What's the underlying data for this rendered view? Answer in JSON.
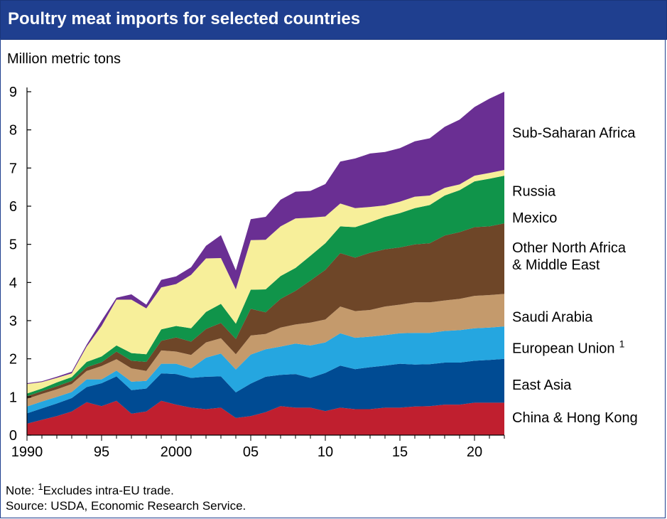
{
  "title": "Poultry meat imports for selected countries",
  "unit_label": "Million metric tons",
  "note_prefix": "Note: ",
  "note_sup": "1",
  "note_text": "Excludes intra-EU trade.",
  "source": "Source: USDA, Economic Research Service.",
  "colors": {
    "title_bg": "#1f3f8f",
    "China & Hong Kong": "#c01f2f",
    "East Asia": "#004b93",
    "European Union": "#25a6e0",
    "Saudi Arabia": "#c49a6c",
    "Other North Africa & Middle East": "#6e4628",
    "Mexico": "#10944a",
    "Russia": "#f7ef9a",
    "Sub-Saharan Africa": "#6a2f93"
  },
  "chart_data": {
    "type": "area",
    "stacked": true,
    "x": [
      1990,
      1991,
      1992,
      1993,
      1994,
      1995,
      1996,
      1997,
      1998,
      1999,
      2000,
      2001,
      2002,
      2003,
      2004,
      2005,
      2006,
      2007,
      2008,
      2009,
      2010,
      2011,
      2012,
      2013,
      2014,
      2015,
      2016,
      2017,
      2018,
      2019,
      2020,
      2021,
      2022
    ],
    "x_tick_values": [
      1990,
      1995,
      2000,
      2005,
      2010,
      2015,
      2020
    ],
    "x_tick_labels": [
      "1990",
      "95",
      "2000",
      "05",
      "10",
      "15",
      "20"
    ],
    "y_ticks": [
      "0",
      "1",
      "2",
      "3",
      "4",
      "5",
      "6",
      "7",
      "8",
      "9"
    ],
    "ylim": [
      0,
      9
    ],
    "grid": false,
    "series": [
      {
        "name": "China & Hong Kong",
        "legend_lines": [
          "China & Hong Kong"
        ],
        "legend_y": 0.47,
        "values": [
          0.3,
          0.4,
          0.5,
          0.62,
          0.86,
          0.76,
          0.9,
          0.56,
          0.62,
          0.9,
          0.8,
          0.72,
          0.68,
          0.72,
          0.45,
          0.5,
          0.6,
          0.76,
          0.72,
          0.72,
          0.63,
          0.72,
          0.68,
          0.68,
          0.72,
          0.72,
          0.75,
          0.76,
          0.8,
          0.8,
          0.85,
          0.85,
          0.85
        ]
      },
      {
        "name": "East Asia",
        "legend_lines": [
          "East Asia"
        ],
        "legend_y": 1.32,
        "values": [
          0.27,
          0.3,
          0.33,
          0.35,
          0.4,
          0.6,
          0.64,
          0.62,
          0.6,
          0.72,
          0.8,
          0.78,
          0.85,
          0.82,
          0.67,
          0.85,
          0.93,
          0.82,
          0.88,
          0.78,
          1.0,
          1.1,
          1.05,
          1.1,
          1.1,
          1.15,
          1.1,
          1.1,
          1.1,
          1.1,
          1.1,
          1.12,
          1.15
        ]
      },
      {
        "name": "European Union",
        "legend_lines": [
          "European Union"
        ],
        "legend_sup": "1",
        "legend_y": 2.28,
        "values": [
          0.18,
          0.18,
          0.17,
          0.16,
          0.2,
          0.1,
          0.15,
          0.22,
          0.2,
          0.25,
          0.27,
          0.25,
          0.5,
          0.6,
          0.6,
          0.76,
          0.72,
          0.74,
          0.8,
          0.85,
          0.8,
          0.85,
          0.82,
          0.8,
          0.8,
          0.8,
          0.83,
          0.82,
          0.83,
          0.85,
          0.85,
          0.85,
          0.85
        ]
      },
      {
        "name": "Saudi Arabia",
        "legend_lines": [
          "Saudi Arabia"
        ],
        "legend_y": 3.1,
        "values": [
          0.2,
          0.2,
          0.2,
          0.21,
          0.22,
          0.35,
          0.3,
          0.35,
          0.26,
          0.35,
          0.32,
          0.35,
          0.4,
          0.4,
          0.4,
          0.5,
          0.4,
          0.5,
          0.5,
          0.6,
          0.6,
          0.7,
          0.7,
          0.7,
          0.75,
          0.75,
          0.8,
          0.8,
          0.8,
          0.82,
          0.85,
          0.85,
          0.85
        ]
      },
      {
        "name": "Other North Africa & Middle East",
        "legend_lines": [
          "Other North Africa",
          "& Middle East"
        ],
        "legend_y": 4.7,
        "values": [
          0.07,
          0.07,
          0.08,
          0.08,
          0.1,
          0.1,
          0.2,
          0.2,
          0.24,
          0.25,
          0.37,
          0.35,
          0.35,
          0.4,
          0.4,
          0.7,
          0.57,
          0.75,
          0.88,
          1.1,
          1.3,
          1.4,
          1.4,
          1.5,
          1.5,
          1.5,
          1.52,
          1.55,
          1.7,
          1.75,
          1.8,
          1.8,
          1.85
        ]
      },
      {
        "name": "Mexico",
        "legend_lines": [
          "Mexico"
        ],
        "legend_y": 5.7,
        "values": [
          0.07,
          0.07,
          0.1,
          0.1,
          0.14,
          0.15,
          0.16,
          0.2,
          0.2,
          0.3,
          0.3,
          0.35,
          0.45,
          0.5,
          0.4,
          0.5,
          0.6,
          0.6,
          0.6,
          0.65,
          0.7,
          0.7,
          0.8,
          0.8,
          0.85,
          0.9,
          0.95,
          1.0,
          1.05,
          1.1,
          1.2,
          1.25,
          1.25
        ]
      },
      {
        "name": "Russia",
        "legend_lines": [
          "Russia"
        ],
        "legend_y": 6.4,
        "values": [
          0.25,
          0.17,
          0.12,
          0.1,
          0.4,
          0.8,
          1.2,
          1.4,
          1.2,
          1.1,
          1.1,
          1.4,
          1.4,
          1.2,
          0.9,
          1.3,
          1.3,
          1.3,
          1.3,
          1.0,
          0.7,
          0.6,
          0.5,
          0.4,
          0.3,
          0.3,
          0.3,
          0.25,
          0.2,
          0.15,
          0.15,
          0.15,
          0.15
        ]
      },
      {
        "name": "Sub-Saharan Africa",
        "legend_lines": [
          "Sub-Saharan Africa"
        ],
        "legend_y": 7.93,
        "values": [
          0.02,
          0.02,
          0.03,
          0.04,
          0.05,
          0.14,
          0.05,
          0.14,
          0.1,
          0.2,
          0.2,
          0.2,
          0.33,
          0.6,
          0.5,
          0.55,
          0.6,
          0.7,
          0.7,
          0.7,
          0.85,
          1.1,
          1.3,
          1.4,
          1.4,
          1.4,
          1.45,
          1.5,
          1.6,
          1.7,
          1.8,
          1.95,
          2.05
        ]
      }
    ]
  }
}
